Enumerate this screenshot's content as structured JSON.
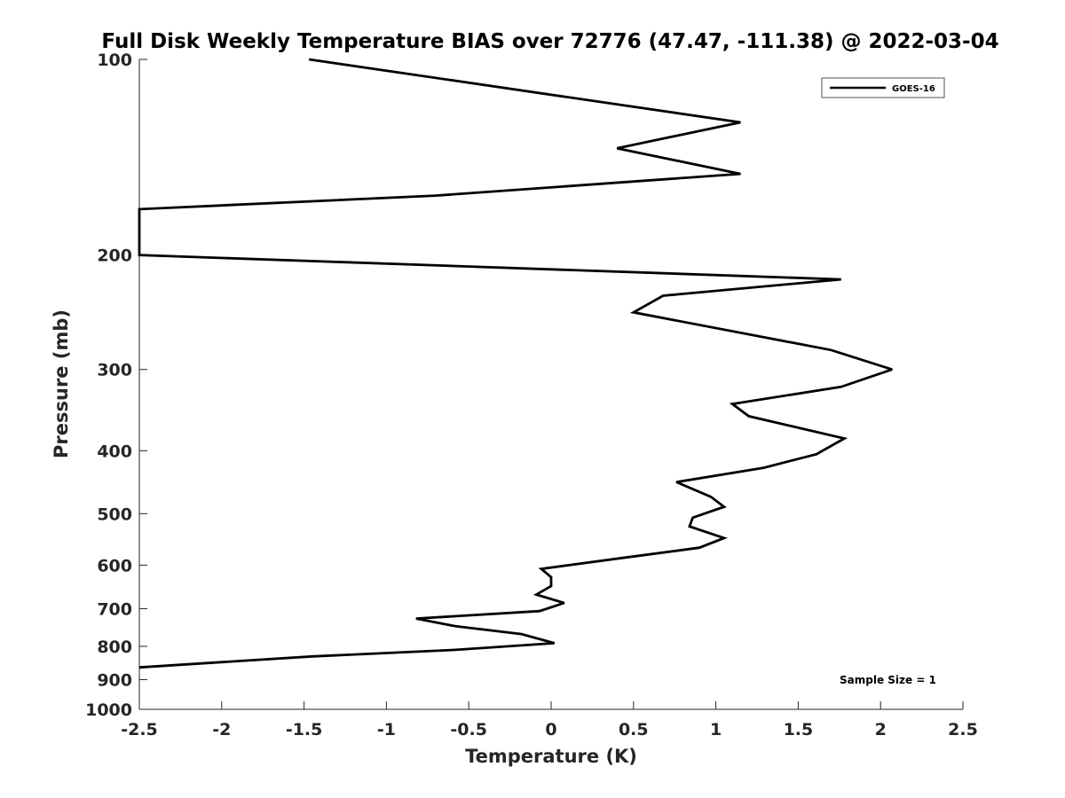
{
  "chart_data": {
    "type": "line",
    "title": "Full Disk Weekly Temperature BIAS over 72776 (47.47, -111.38) @ 2022-03-04",
    "xlabel": "Temperature (K)",
    "ylabel": "Pressure (mb)",
    "xlim": [
      -2.5,
      2.5
    ],
    "ylim": [
      100,
      1000
    ],
    "yscale": "log",
    "yaxis_reversed": true,
    "grid": false,
    "x_ticks": [
      -2.5,
      -2,
      -1.5,
      -1,
      -0.5,
      0,
      0.5,
      1,
      1.5,
      2,
      2.5
    ],
    "x_tick_labels": [
      "-2.5",
      "-2",
      "-1.5",
      "-1",
      "-0.5",
      "0",
      "0.5",
      "1",
      "1.5",
      "2",
      "2.5"
    ],
    "y_ticks": [
      100,
      200,
      300,
      400,
      500,
      600,
      700,
      800,
      900,
      1000
    ],
    "y_tick_labels": [
      "100",
      "200",
      "300",
      "400",
      "500",
      "600",
      "700",
      "800",
      "900",
      "1000"
    ],
    "legend_position": "top-right",
    "series": [
      {
        "name": "GOES-16",
        "color": "#000000",
        "x": [
          -1.47,
          1.15,
          0.4,
          1.15,
          -0.7,
          -2.5,
          -2.5,
          1.76,
          0.68,
          0.5,
          1.7,
          2.07,
          1.76,
          1.1,
          1.2,
          1.78,
          1.61,
          1.29,
          0.76,
          0.97,
          1.05,
          0.86,
          0.84,
          1.05,
          0.9,
          0.43,
          -0.06,
          0.0,
          0.0,
          -0.09,
          0.08,
          -0.07,
          -0.82,
          -0.58,
          -0.18,
          0.02,
          -0.58,
          -1.45,
          -2.5
        ],
        "y": [
          100,
          125,
          137,
          150,
          162,
          170,
          200,
          218,
          231,
          245,
          280,
          300,
          319,
          339,
          354,
          383,
          405,
          425,
          447,
          471,
          488,
          507,
          523,
          545,
          564,
          585,
          608,
          626,
          646,
          666,
          686,
          706,
          725,
          745,
          766,
          791,
          810,
          829,
          862
        ]
      }
    ],
    "annotations": [
      "Sample Size = 1"
    ]
  }
}
